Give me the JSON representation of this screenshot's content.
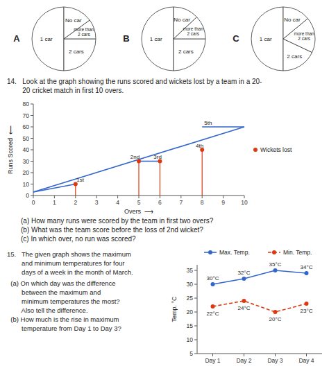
{
  "chart_data": [
    {
      "type": "pie",
      "title": "A",
      "categories": [
        "1 car",
        "2 cars",
        "more than\n2 cars",
        "No car"
      ],
      "values": [
        50,
        25,
        10,
        15
      ],
      "colors": [
        "#ffffff",
        "#ffffff",
        "#ffffff",
        "#ffffff"
      ]
    },
    {
      "type": "pie",
      "title": "B",
      "categories": [
        "1 car",
        "2 cars",
        "more than\n2 cars",
        "No car"
      ],
      "values": [
        50,
        25,
        12,
        13
      ],
      "colors": [
        "#ffffff",
        "#ffffff",
        "#ffffff",
        "#ffffff"
      ]
    },
    {
      "type": "pie",
      "title": "C",
      "categories": [
        "1 car",
        "2 cars",
        "more than\n2 cars",
        "No car"
      ],
      "values": [
        50,
        18,
        18,
        14
      ],
      "colors": [
        "#ffffff",
        "#ffffff",
        "#ffffff",
        "#ffffff"
      ]
    },
    {
      "type": "line",
      "intro": [
        "14.   Look at the graph showing the runs scored and wickets lost by a team in a 20-",
        "        20 cricket match in first 10 overs."
      ],
      "questions": [
        "(a) How many runs were scored by the team in first two overs?",
        "(b) What was the team score before the loss of 2nd wicket?",
        "(c) In which over, no run was scored?"
      ],
      "xlabel": "Overs  ⟶",
      "ylabel": "Runs Scored  ⟵",
      "xlim": [
        0,
        10
      ],
      "xticks": [
        0,
        1,
        2,
        3,
        4,
        5,
        6,
        7,
        8,
        9,
        10
      ],
      "ylim": [
        0,
        80
      ],
      "yticks": [
        0,
        10,
        20,
        30,
        40,
        50,
        60,
        70,
        80
      ],
      "series": [
        {
          "x": [
            0,
            10
          ],
          "values": [
            3,
            60
          ]
        },
        {
          "x": [
            0,
            2
          ],
          "values": [
            3,
            10
          ]
        },
        {
          "x": [
            5,
            6
          ],
          "values": [
            30,
            30
          ]
        },
        {
          "x": [
            8,
            10
          ],
          "values": [
            60,
            60
          ]
        },
        {
          "name": "Wickets lost",
          "type": "stem",
          "marker": "circle",
          "x": [
            2,
            5,
            6,
            8
          ],
          "values": [
            10,
            30,
            30,
            40
          ]
        }
      ],
      "annotations": [
        {
          "x": 2.05,
          "y": 11.5,
          "text": "1st"
        },
        {
          "x": 4.6,
          "y": 31.5,
          "text": "2nd"
        },
        {
          "x": 5.7,
          "y": 31.5,
          "text": "3rd"
        },
        {
          "x": 7.7,
          "y": 41.5,
          "text": "4th"
        },
        {
          "x": 8.1,
          "y": 61.5,
          "text": "5th"
        }
      ],
      "legend": "right"
    },
    {
      "type": "line",
      "intro": [
        "15.   The given graph shows the maximum",
        "        and minimum temperatures for four",
        "        days of a week in the month of March."
      ],
      "questions": [
        "  (a) On which day was the difference",
        "        between the maximum and",
        "        minimum temperatures the most?",
        "        Also tell the difference.",
        "  (b) How much is the rise in maximum",
        "        temperature from Day 1 to Day 3?"
      ],
      "categories": [
        "Day 1",
        "Day 2",
        "Day 3",
        "Day 4"
      ],
      "ylabel": "Temp. °C",
      "ylim": [
        5,
        37
      ],
      "yticks": [
        5,
        10,
        15,
        20,
        25,
        30,
        35
      ],
      "data_labels": true,
      "series": [
        {
          "name": "Max. Temp.",
          "values": [
            30,
            32,
            35,
            34
          ],
          "value_labels": [
            "30°C",
            "32°C",
            "35°C",
            "34°C"
          ],
          "line_style": "solid",
          "marker": "circle"
        },
        {
          "name": "Min. Temp.",
          "values": [
            22,
            24,
            20,
            23
          ],
          "value_labels": [
            "22°C",
            "24°C",
            "20°C",
            "23°C"
          ],
          "line_style": "dashed",
          "marker": "circle"
        }
      ],
      "legend": "top"
    }
  ]
}
